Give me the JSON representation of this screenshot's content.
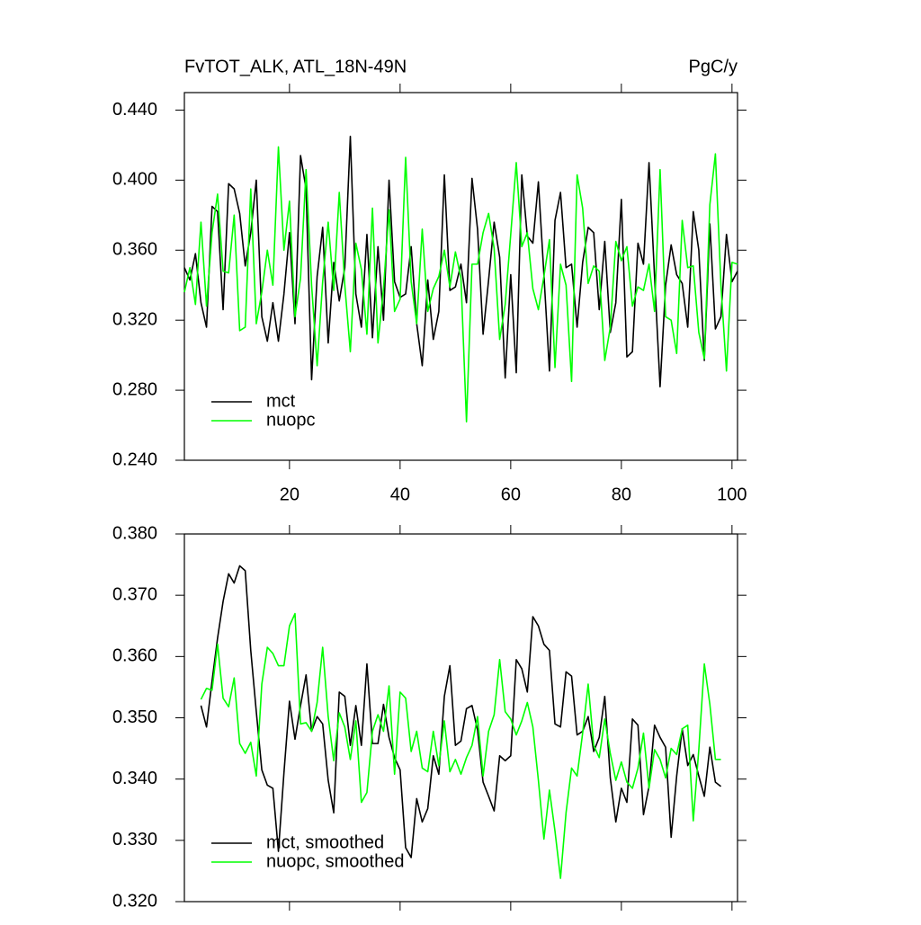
{
  "chart_data": [
    {
      "type": "line",
      "title": "FvTOT_ALK, ATL_18N-49N",
      "units": "PgC/y",
      "x": [
        1,
        2,
        3,
        4,
        5,
        6,
        7,
        8,
        9,
        10,
        11,
        12,
        13,
        14,
        15,
        16,
        17,
        18,
        19,
        20,
        21,
        22,
        23,
        24,
        25,
        26,
        27,
        28,
        29,
        30,
        31,
        32,
        33,
        34,
        35,
        36,
        37,
        38,
        39,
        40,
        41,
        42,
        43,
        44,
        45,
        46,
        47,
        48,
        49,
        50,
        51,
        52,
        53,
        54,
        55,
        56,
        57,
        58,
        59,
        60,
        61,
        62,
        63,
        64,
        65,
        66,
        67,
        68,
        69,
        70,
        71,
        72,
        73,
        74,
        75,
        76,
        77,
        78,
        79,
        80,
        81,
        82,
        83,
        84,
        85,
        86,
        87,
        88,
        89,
        90,
        91,
        92,
        93,
        94,
        95,
        96,
        97,
        98,
        99,
        100,
        101
      ],
      "series": [
        {
          "name": "mct",
          "color": "#000000",
          "values": [
            0.35,
            0.343,
            0.358,
            0.33,
            0.316,
            0.385,
            0.382,
            0.326,
            0.398,
            0.395,
            0.381,
            0.351,
            0.37,
            0.4,
            0.322,
            0.308,
            0.33,
            0.308,
            0.335,
            0.37,
            0.318,
            0.414,
            0.395,
            0.286,
            0.345,
            0.373,
            0.307,
            0.353,
            0.331,
            0.35,
            0.425,
            0.335,
            0.316,
            0.369,
            0.31,
            0.362,
            0.32,
            0.4,
            0.342,
            0.333,
            0.335,
            0.362,
            0.318,
            0.294,
            0.343,
            0.309,
            0.325,
            0.403,
            0.337,
            0.339,
            0.352,
            0.33,
            0.401,
            0.372,
            0.312,
            0.343,
            0.376,
            0.356,
            0.287,
            0.346,
            0.29,
            0.403,
            0.368,
            0.364,
            0.399,
            0.346,
            0.291,
            0.377,
            0.393,
            0.35,
            0.352,
            0.316,
            0.353,
            0.373,
            0.37,
            0.326,
            0.365,
            0.313,
            0.33,
            0.389,
            0.299,
            0.302,
            0.364,
            0.352,
            0.41,
            0.345,
            0.282,
            0.34,
            0.363,
            0.346,
            0.341,
            0.316,
            0.382,
            0.36,
            0.297,
            0.375,
            0.315,
            0.322,
            0.369,
            0.342,
            0.348
          ]
        },
        {
          "name": "nuopc",
          "color": "#00ff00",
          "values": [
            0.336,
            0.35,
            0.329,
            0.376,
            0.328,
            0.37,
            0.392,
            0.348,
            0.347,
            0.38,
            0.314,
            0.316,
            0.395,
            0.318,
            0.336,
            0.36,
            0.34,
            0.419,
            0.36,
            0.388,
            0.322,
            0.344,
            0.406,
            0.34,
            0.294,
            0.342,
            0.376,
            0.337,
            0.393,
            0.34,
            0.302,
            0.364,
            0.349,
            0.312,
            0.384,
            0.307,
            0.338,
            0.383,
            0.325,
            0.332,
            0.413,
            0.342,
            0.318,
            0.372,
            0.325,
            0.338,
            0.345,
            0.36,
            0.339,
            0.359,
            0.344,
            0.262,
            0.352,
            0.352,
            0.37,
            0.381,
            0.361,
            0.309,
            0.329,
            0.369,
            0.41,
            0.362,
            0.37,
            0.338,
            0.326,
            0.345,
            0.366,
            0.293,
            0.352,
            0.34,
            0.285,
            0.403,
            0.384,
            0.341,
            0.351,
            0.348,
            0.297,
            0.316,
            0.365,
            0.354,
            0.362,
            0.328,
            0.339,
            0.337,
            0.352,
            0.325,
            0.406,
            0.322,
            0.32,
            0.301,
            0.377,
            0.35,
            0.351,
            0.313,
            0.298,
            0.386,
            0.415,
            0.34,
            0.291,
            0.353,
            0.352
          ]
        }
      ],
      "xlim": [
        1,
        101
      ],
      "xticks": [
        20,
        40,
        60,
        80,
        100
      ],
      "xtick_labels": true,
      "ylim": [
        0.24,
        0.45
      ],
      "yticks": [
        {
          "value": 0.24,
          "label": "0.240"
        },
        {
          "value": 0.28,
          "label": "0.280"
        },
        {
          "value": 0.32,
          "label": "0.320"
        },
        {
          "value": 0.36,
          "label": "0.360"
        },
        {
          "value": 0.4,
          "label": "0.400"
        },
        {
          "value": 0.44,
          "label": "0.440"
        }
      ],
      "legend": "lower left"
    },
    {
      "type": "line",
      "x": [
        4,
        5,
        6,
        7,
        8,
        9,
        10,
        11,
        12,
        13,
        14,
        15,
        16,
        17,
        18,
        19,
        20,
        21,
        22,
        23,
        24,
        25,
        26,
        27,
        28,
        29,
        30,
        31,
        32,
        33,
        34,
        35,
        36,
        37,
        38,
        39,
        40,
        41,
        42,
        43,
        44,
        45,
        46,
        47,
        48,
        49,
        50,
        51,
        52,
        53,
        54,
        55,
        56,
        57,
        58,
        59,
        60,
        61,
        62,
        63,
        64,
        65,
        66,
        67,
        68,
        69,
        70,
        71,
        72,
        73,
        74,
        75,
        76,
        77,
        78,
        79,
        80,
        81,
        82,
        83,
        84,
        85,
        86,
        87,
        88,
        89,
        90,
        91,
        92,
        93,
        94,
        95,
        96,
        97,
        98
      ],
      "series": [
        {
          "name": "mct, smoothed",
          "color": "#000000",
          "values": [
            0.352,
            0.3485,
            0.356,
            0.363,
            0.369,
            0.3735,
            0.372,
            0.3748,
            0.374,
            0.361,
            0.351,
            0.3415,
            0.339,
            0.3385,
            0.3282,
            0.341,
            0.3527,
            0.3465,
            0.352,
            0.357,
            0.3478,
            0.3502,
            0.349,
            0.3398,
            0.3345,
            0.3542,
            0.3535,
            0.3455,
            0.352,
            0.3455,
            0.3588,
            0.3458,
            0.3458,
            0.3522,
            0.3468,
            0.3435,
            0.3415,
            0.3288,
            0.3272,
            0.3368,
            0.333,
            0.3352,
            0.3438,
            0.3408,
            0.3535,
            0.3585,
            0.3455,
            0.3462,
            0.3515,
            0.352,
            0.348,
            0.3395,
            0.3372,
            0.3348,
            0.3438,
            0.343,
            0.3438,
            0.3595,
            0.358,
            0.3542,
            0.3665,
            0.365,
            0.362,
            0.361,
            0.349,
            0.3485,
            0.3575,
            0.3568,
            0.3472,
            0.3478,
            0.3502,
            0.3445,
            0.3468,
            0.3535,
            0.3402,
            0.333,
            0.3385,
            0.3362,
            0.3498,
            0.3488,
            0.3342,
            0.3388,
            0.3488,
            0.3468,
            0.3452,
            0.3305,
            0.3405,
            0.3482,
            0.3422,
            0.344,
            0.3405,
            0.3372,
            0.3452,
            0.3395,
            0.3388
          ]
        },
        {
          "name": "nuopc, smoothed",
          "color": "#00ff00",
          "values": [
            0.353,
            0.3548,
            0.3545,
            0.362,
            0.3532,
            0.3518,
            0.3565,
            0.3458,
            0.3442,
            0.346,
            0.3405,
            0.3555,
            0.3615,
            0.3605,
            0.3585,
            0.3585,
            0.365,
            0.367,
            0.349,
            0.3492,
            0.3478,
            0.3525,
            0.3615,
            0.3502,
            0.343,
            0.3508,
            0.3485,
            0.3432,
            0.3495,
            0.3362,
            0.3378,
            0.3478,
            0.3505,
            0.3478,
            0.3552,
            0.3408,
            0.3542,
            0.3532,
            0.3445,
            0.3478,
            0.3418,
            0.3412,
            0.3478,
            0.3422,
            0.3495,
            0.3412,
            0.3432,
            0.3408,
            0.3435,
            0.3455,
            0.3502,
            0.3405,
            0.3478,
            0.3505,
            0.3595,
            0.351,
            0.3498,
            0.3472,
            0.3495,
            0.3525,
            0.3485,
            0.3398,
            0.3302,
            0.3382,
            0.3315,
            0.3238,
            0.3345,
            0.3418,
            0.3405,
            0.3475,
            0.3555,
            0.3455,
            0.3435,
            0.3498,
            0.3442,
            0.3398,
            0.3428,
            0.3395,
            0.3385,
            0.3418,
            0.3475,
            0.3385,
            0.3448,
            0.3432,
            0.3402,
            0.345,
            0.344,
            0.3482,
            0.3488,
            0.3332,
            0.3448,
            0.3588,
            0.3522,
            0.3432,
            0.3432
          ]
        }
      ],
      "xlim": [
        1,
        101
      ],
      "xticks": [
        20,
        40,
        60,
        80,
        100
      ],
      "xtick_labels": false,
      "ylim": [
        0.32,
        0.38
      ],
      "yticks": [
        {
          "value": 0.32,
          "label": "0.320"
        },
        {
          "value": 0.33,
          "label": "0.330"
        },
        {
          "value": 0.34,
          "label": "0.340"
        },
        {
          "value": 0.35,
          "label": "0.350"
        },
        {
          "value": 0.36,
          "label": "0.360"
        },
        {
          "value": 0.37,
          "label": "0.370"
        },
        {
          "value": 0.38,
          "label": "0.380"
        }
      ],
      "legend": "lower left"
    }
  ]
}
